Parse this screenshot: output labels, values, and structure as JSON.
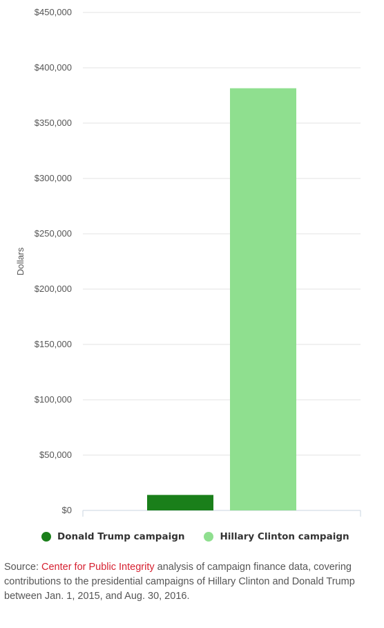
{
  "chart_data": {
    "type": "bar",
    "title": "",
    "xlabel": "",
    "ylabel": "Dollars",
    "ylim": [
      0,
      450000
    ],
    "yticks": [
      0,
      50000,
      100000,
      150000,
      200000,
      250000,
      300000,
      350000,
      400000,
      450000
    ],
    "ytick_labels": [
      "$0",
      "$50,000",
      "$100,000",
      "$150,000",
      "$200,000",
      "$250,000",
      "$300,000",
      "$350,000",
      "$400,000",
      "$450,000"
    ],
    "grid": true,
    "legend_position": "bottom",
    "series": [
      {
        "name": "Donald Trump campaign",
        "values": [
          14000
        ],
        "color": "#1a7f1a"
      },
      {
        "name": "Hillary Clinton campaign",
        "values": [
          381500
        ],
        "color": "#8fdf8f"
      }
    ]
  },
  "source": {
    "prefix": "Source: ",
    "link_text": "Center for Public Integrity",
    "suffix": " analysis of campaign finance data, covering contributions to the presidential campaigns of Hillary Clinton and Donald Trump between Jan. 1, 2015, and Aug. 30, 2016."
  },
  "colors": {
    "gridline": "#e3e3e3",
    "axis": "#c8d4e0",
    "link": "#d62030"
  }
}
